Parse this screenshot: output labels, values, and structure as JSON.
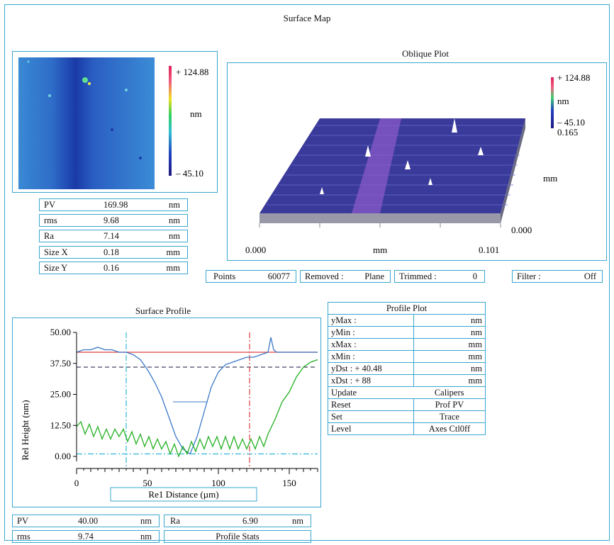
{
  "surface_map": {
    "title": "Surface Map",
    "scale_top": "+ 124.88",
    "scale_unit": "nm",
    "scale_bottom": "– 45.10"
  },
  "map_stats": [
    {
      "label": "PV",
      "value": "169.98",
      "unit": "nm"
    },
    {
      "label": "rms",
      "value": "9.68",
      "unit": "nm"
    },
    {
      "label": "Ra",
      "value": "7.14",
      "unit": "nm"
    },
    {
      "label": "Size X",
      "value": "0.18",
      "unit": "mm"
    },
    {
      "label": "Size Y",
      "value": "0.16",
      "unit": "mm"
    }
  ],
  "oblique": {
    "title": "Oblique Plot",
    "scale_top": "+ 124.88",
    "scale_unit": "nm",
    "scale_bottom": "– 45.10",
    "y_max": "0.165",
    "y_unit": "mm",
    "y_min": "0.000",
    "x_min": "0.000",
    "x_unit": "mm",
    "x_max": "0.101"
  },
  "info_bar": {
    "points_label": "Points",
    "points_value": "60077",
    "removed_label": "Removed :",
    "removed_value": "Plane",
    "trimmed_label": "Trimmed :",
    "trimmed_value": "0",
    "filter_label": "Filter :",
    "filter_value": "Off"
  },
  "profile": {
    "title": "Surface Profile",
    "ylabel": "Rel Height (nm)",
    "xlabel": "Re1 Distance (µm)"
  },
  "chart_data": {
    "type": "line",
    "title": "Surface Profile",
    "xlabel": "Re1 Distance (µm)",
    "ylabel": "Rel Height (nm)",
    "xlim": [
      0,
      170
    ],
    "ylim": [
      -2,
      50
    ],
    "x_ticks": [
      "0",
      "50",
      "100",
      "150"
    ],
    "y_ticks": [
      "0.00",
      "12.50",
      "25.00",
      "37.50",
      "50.00"
    ],
    "series": [
      {
        "color": "#3a78c8",
        "x": [
          0,
          5,
          10,
          15,
          20,
          25,
          30,
          35,
          40,
          45,
          50,
          55,
          60,
          65,
          70,
          75,
          80,
          85,
          90,
          95,
          100,
          105,
          110,
          115,
          120,
          125,
          130,
          135,
          137,
          139,
          141,
          145,
          150,
          155,
          160,
          165,
          170
        ],
        "y": [
          42,
          43,
          43,
          44,
          43,
          43,
          42,
          42,
          41,
          39,
          35,
          30,
          24,
          16,
          8,
          3,
          1,
          8,
          18,
          28,
          34,
          37,
          38,
          39,
          40,
          40,
          41,
          42,
          48,
          43,
          42,
          42,
          42,
          42,
          42,
          42,
          42
        ]
      },
      {
        "color": "#22b022",
        "x": [
          0,
          3,
          6,
          9,
          12,
          15,
          18,
          21,
          24,
          27,
          30,
          33,
          36,
          39,
          42,
          45,
          48,
          51,
          54,
          57,
          60,
          63,
          66,
          69,
          72,
          75,
          78,
          81,
          84,
          87,
          90,
          93,
          96,
          99,
          102,
          105,
          108,
          111,
          114,
          117,
          120,
          123,
          126,
          129,
          132,
          135,
          140,
          145,
          150,
          155,
          160,
          165,
          170
        ],
        "y": [
          12,
          14,
          9,
          13,
          8,
          12,
          7,
          11,
          7,
          11,
          8,
          11,
          6,
          10,
          5,
          9,
          4,
          8,
          3,
          7,
          3,
          6,
          1,
          5,
          0,
          4,
          1,
          6,
          2,
          7,
          3,
          8,
          4,
          8,
          3,
          8,
          3,
          8,
          3,
          7,
          3,
          7,
          3,
          8,
          4,
          9,
          15,
          22,
          26,
          32,
          36,
          38,
          39
        ]
      }
    ],
    "reference_lines": [
      {
        "orientation": "horizontal",
        "value": 42,
        "color": "#e04040",
        "style": "solid"
      },
      {
        "orientation": "horizontal",
        "value": 36,
        "color": "#444466",
        "style": "dashed"
      },
      {
        "orientation": "horizontal",
        "value": 1,
        "color": "#30b8d8",
        "style": "dashdot"
      },
      {
        "orientation": "vertical",
        "value": 35,
        "color": "#30b8d8",
        "style": "dashdot"
      },
      {
        "orientation": "vertical",
        "value": 122,
        "color": "#e04040",
        "style": "dashdot"
      }
    ]
  },
  "profile_stats": {
    "pv_label": "PV",
    "pv_value": "40.00",
    "pv_unit": "nm",
    "rms_label": "rms",
    "rms_value": "9.74",
    "rms_unit": "nm",
    "ra_label": "Ra",
    "ra_value": "6.90",
    "ra_unit": "nm",
    "stats_button": "Profile Stats"
  },
  "profile_plot": {
    "title": "Profile Plot",
    "rows": [
      {
        "label": "yMax :",
        "unit": "nm"
      },
      {
        "label": "yMin :",
        "unit": "nm"
      },
      {
        "label": "xMax :",
        "unit": "mm"
      },
      {
        "label": "xMin :",
        "unit": "mm"
      },
      {
        "label": "yDst : + 40.48",
        "unit": "nm"
      },
      {
        "label": "xDst : + 88",
        "unit": "mm"
      }
    ],
    "update": "Update",
    "calipers": "Calipers",
    "reset": "Reset",
    "prof_pv": "Prof PV",
    "set": "Set",
    "trace": "Trace",
    "level": "Level",
    "axes_ctl": "Axes Ctl0ff"
  }
}
